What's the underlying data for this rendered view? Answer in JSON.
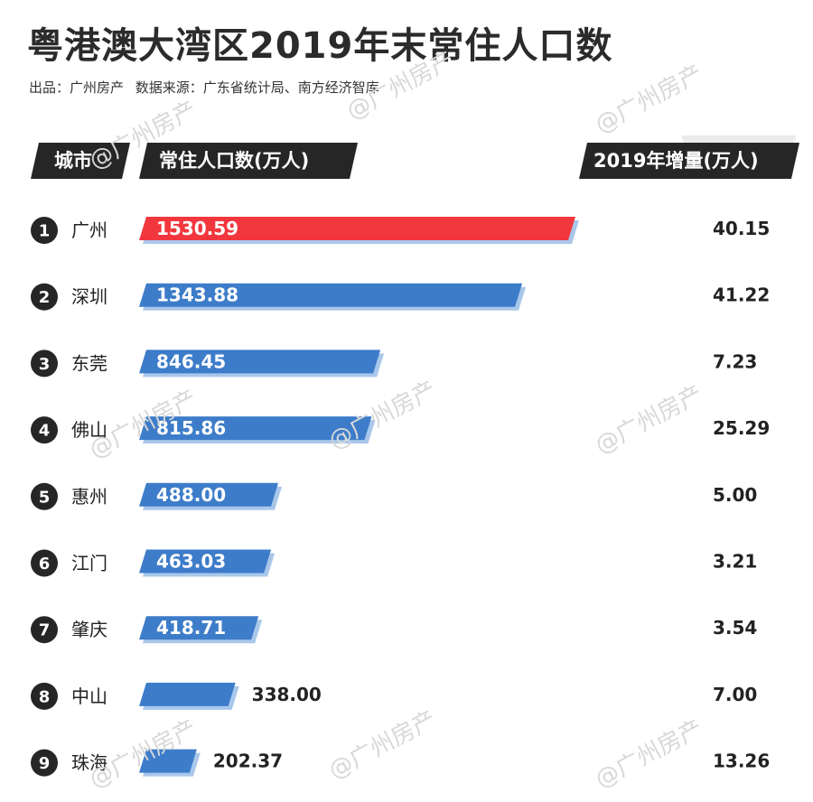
{
  "title": "粤港澳大湾区2019年末常住人口数",
  "source": {
    "producer_label": "出品：广州房产",
    "data_source_label": "数据来源：广东省统计局、南方经济智库"
  },
  "watermark_text": "@广州房产",
  "colors": {
    "highlight": "#f1373d",
    "bar": "#3d7cc9",
    "shadow": "#a9c7ea",
    "header_bg": "#262626",
    "rank_bg": "#262626"
  },
  "chart_data": {
    "type": "bar",
    "orientation": "horizontal",
    "title": "粤港澳大湾区2019年末常住人口数",
    "column_headers": {
      "city": "城市",
      "population": "常住人口数(万人)",
      "increase": "2019年增量(万人)"
    },
    "rows": [
      {
        "rank": "1",
        "city": "广州",
        "population": 1530.59,
        "population_label": "1530.59",
        "increase": "40.15",
        "highlight": true
      },
      {
        "rank": "2",
        "city": "深圳",
        "population": 1343.88,
        "population_label": "1343.88",
        "increase": "41.22",
        "highlight": false
      },
      {
        "rank": "3",
        "city": "东莞",
        "population": 846.45,
        "population_label": "846.45",
        "increase": "7.23",
        "highlight": false
      },
      {
        "rank": "4",
        "city": "佛山",
        "population": 815.86,
        "population_label": "815.86",
        "increase": "25.29",
        "highlight": false
      },
      {
        "rank": "5",
        "city": "惠州",
        "population": 488.0,
        "population_label": "488.00",
        "increase": "5.00",
        "highlight": false
      },
      {
        "rank": "6",
        "city": "江门",
        "population": 463.03,
        "population_label": "463.03",
        "increase": "3.21",
        "highlight": false
      },
      {
        "rank": "7",
        "city": "肇庆",
        "population": 418.71,
        "population_label": "418.71",
        "increase": "3.54",
        "highlight": false
      },
      {
        "rank": "8",
        "city": "中山",
        "population": 338.0,
        "population_label": "338.00",
        "increase": "7.00",
        "highlight": false
      },
      {
        "rank": "9",
        "city": "珠海",
        "population": 202.37,
        "population_label": "202.37",
        "increase": "13.26",
        "highlight": false
      }
    ]
  }
}
